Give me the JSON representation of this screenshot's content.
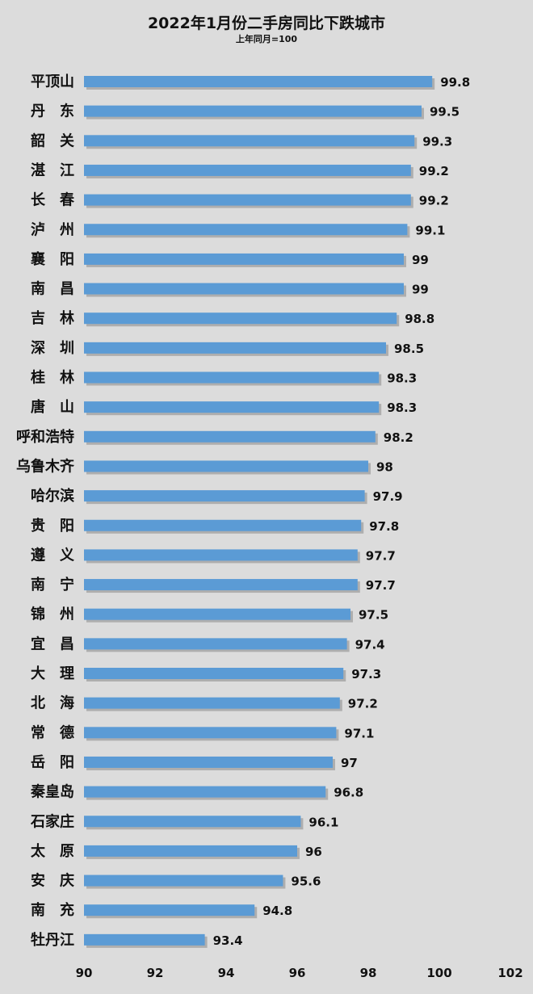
{
  "chart_data": {
    "type": "bar",
    "orientation": "horizontal",
    "title": "2022年1月份二手房同比下跌城市",
    "subtitle": "上年同月=100",
    "categories": [
      "平顶山",
      "丹　东",
      "韶　关",
      "湛　江",
      "长　春",
      "泸　州",
      "襄　阳",
      "南　昌",
      "吉　林",
      "深　圳",
      "桂　林",
      "唐　山",
      "呼和浩特",
      "乌鲁木齐",
      "哈尔滨",
      "贵　阳",
      "遵　义",
      "南　宁",
      "锦　州",
      "宜　昌",
      "大　理",
      "北　海",
      "常　德",
      "岳　阳",
      "秦皇岛",
      "石家庄",
      "太　原",
      "安　庆",
      "南　充",
      "牡丹江"
    ],
    "values": [
      99.8,
      99.5,
      99.3,
      99.2,
      99.2,
      99.1,
      99,
      99,
      98.8,
      98.5,
      98.3,
      98.3,
      98.2,
      98,
      97.9,
      97.8,
      97.7,
      97.7,
      97.5,
      97.4,
      97.3,
      97.2,
      97.1,
      97,
      96.8,
      96.1,
      96,
      95.6,
      94.8,
      93.4
    ],
    "value_labels": [
      "99.8",
      "99.5",
      "99.3",
      "99.2",
      "99.2",
      "99.1",
      "99",
      "99",
      "98.8",
      "98.5",
      "98.3",
      "98.3",
      "98.2",
      "98",
      "97.9",
      "97.8",
      "97.7",
      "97.7",
      "97.5",
      "97.4",
      "97.3",
      "97.2",
      "97.1",
      "97",
      "96.8",
      "96.1",
      "96",
      "95.6",
      "94.8",
      "93.4"
    ],
    "xlim": [
      90,
      102
    ],
    "xticks": [
      "90",
      "92",
      "94",
      "96",
      "98",
      "100",
      "102"
    ],
    "xtick_values": [
      90,
      92,
      94,
      96,
      98,
      100,
      102
    ],
    "grid": false,
    "legend": "none",
    "colors": {
      "bar": "#5b9bd5",
      "bar_shadow": "#9a9a9a",
      "background": "#dcdcdc",
      "text": "#111111"
    }
  }
}
